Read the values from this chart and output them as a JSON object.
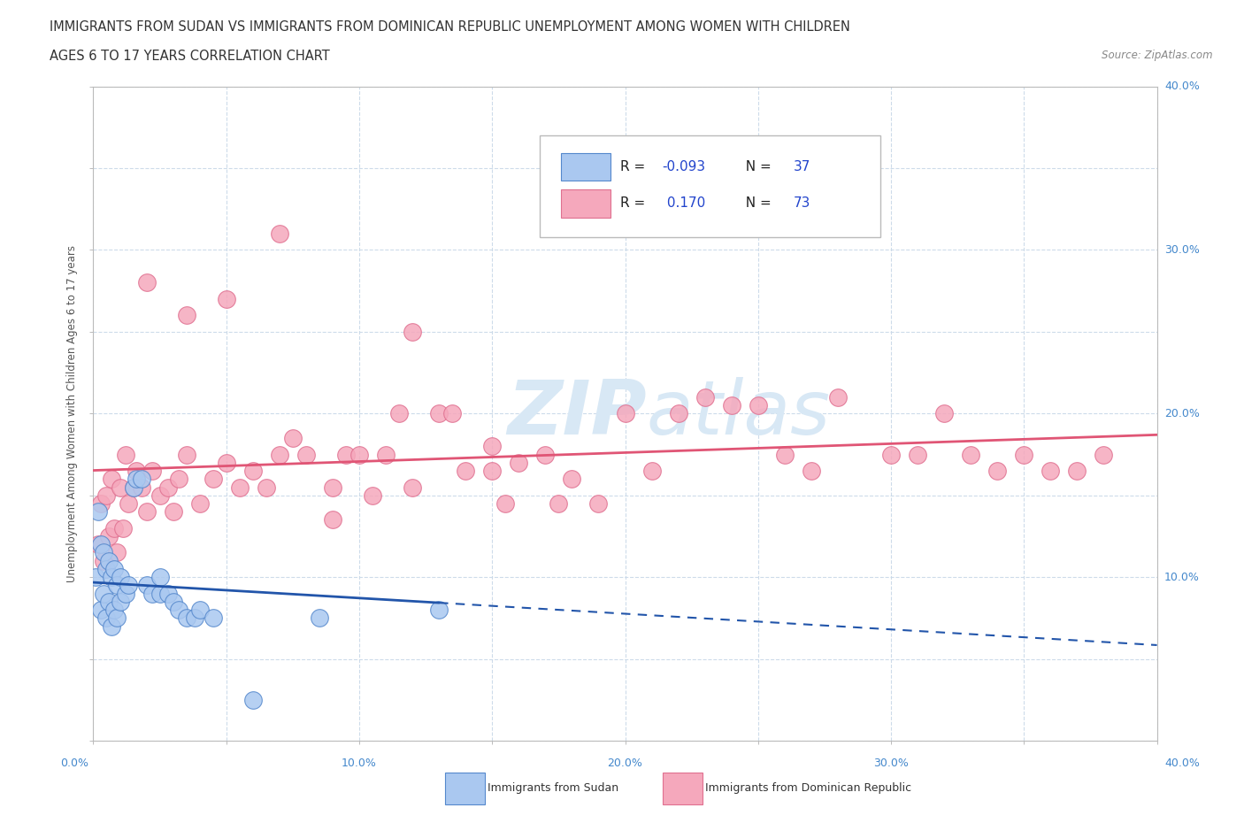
{
  "title_line1": "IMMIGRANTS FROM SUDAN VS IMMIGRANTS FROM DOMINICAN REPUBLIC UNEMPLOYMENT AMONG WOMEN WITH CHILDREN",
  "title_line2": "AGES 6 TO 17 YEARS CORRELATION CHART",
  "source_text": "Source: ZipAtlas.com",
  "ylabel_label": "Unemployment Among Women with Children Ages 6 to 17 years",
  "legend_sudan": "Immigrants from Sudan",
  "legend_dr": "Immigrants from Dominican Republic",
  "r_sudan": -0.093,
  "n_sudan": 37,
  "r_dr": 0.17,
  "n_dr": 73,
  "sudan_color": "#aac8f0",
  "sudan_edge": "#5588cc",
  "dr_color": "#f5a8bc",
  "dr_edge": "#e07090",
  "sudan_line_color": "#2255aa",
  "dr_line_color": "#e05575",
  "watermark_color": "#d8e8f5",
  "xmin": 0.0,
  "xmax": 0.4,
  "ymin": 0.0,
  "ymax": 0.4,
  "right_tick_color": "#4488cc",
  "bottom_tick_color": "#4488cc",
  "grid_color": "#c8d8e8",
  "sudan_x": [
    0.001,
    0.002,
    0.003,
    0.003,
    0.004,
    0.004,
    0.005,
    0.005,
    0.006,
    0.006,
    0.007,
    0.007,
    0.008,
    0.008,
    0.009,
    0.009,
    0.01,
    0.01,
    0.012,
    0.013,
    0.015,
    0.016,
    0.018,
    0.02,
    0.022,
    0.025,
    0.025,
    0.028,
    0.03,
    0.032,
    0.035,
    0.038,
    0.04,
    0.045,
    0.06,
    0.085,
    0.13
  ],
  "sudan_y": [
    0.1,
    0.14,
    0.08,
    0.12,
    0.09,
    0.115,
    0.075,
    0.105,
    0.085,
    0.11,
    0.07,
    0.1,
    0.08,
    0.105,
    0.075,
    0.095,
    0.085,
    0.1,
    0.09,
    0.095,
    0.155,
    0.16,
    0.16,
    0.095,
    0.09,
    0.09,
    0.1,
    0.09,
    0.085,
    0.08,
    0.075,
    0.075,
    0.08,
    0.075,
    0.025,
    0.075,
    0.08
  ],
  "dr_x": [
    0.002,
    0.003,
    0.004,
    0.005,
    0.006,
    0.007,
    0.008,
    0.009,
    0.01,
    0.011,
    0.012,
    0.013,
    0.015,
    0.016,
    0.018,
    0.02,
    0.022,
    0.025,
    0.028,
    0.03,
    0.032,
    0.035,
    0.04,
    0.045,
    0.05,
    0.055,
    0.06,
    0.065,
    0.07,
    0.075,
    0.08,
    0.09,
    0.095,
    0.1,
    0.105,
    0.11,
    0.115,
    0.12,
    0.13,
    0.135,
    0.14,
    0.15,
    0.155,
    0.16,
    0.17,
    0.175,
    0.18,
    0.19,
    0.2,
    0.21,
    0.22,
    0.23,
    0.24,
    0.25,
    0.26,
    0.27,
    0.28,
    0.3,
    0.31,
    0.32,
    0.33,
    0.34,
    0.35,
    0.36,
    0.37,
    0.38,
    0.02,
    0.035,
    0.05,
    0.07,
    0.09,
    0.12,
    0.15
  ],
  "dr_y": [
    0.12,
    0.145,
    0.11,
    0.15,
    0.125,
    0.16,
    0.13,
    0.115,
    0.155,
    0.13,
    0.175,
    0.145,
    0.155,
    0.165,
    0.155,
    0.14,
    0.165,
    0.15,
    0.155,
    0.14,
    0.16,
    0.175,
    0.145,
    0.16,
    0.17,
    0.155,
    0.165,
    0.155,
    0.175,
    0.185,
    0.175,
    0.155,
    0.175,
    0.175,
    0.15,
    0.175,
    0.2,
    0.25,
    0.2,
    0.2,
    0.165,
    0.18,
    0.145,
    0.17,
    0.175,
    0.145,
    0.16,
    0.145,
    0.2,
    0.165,
    0.2,
    0.21,
    0.205,
    0.205,
    0.175,
    0.165,
    0.21,
    0.175,
    0.175,
    0.2,
    0.175,
    0.165,
    0.175,
    0.165,
    0.165,
    0.175,
    0.28,
    0.26,
    0.27,
    0.31,
    0.135,
    0.155,
    0.165
  ]
}
